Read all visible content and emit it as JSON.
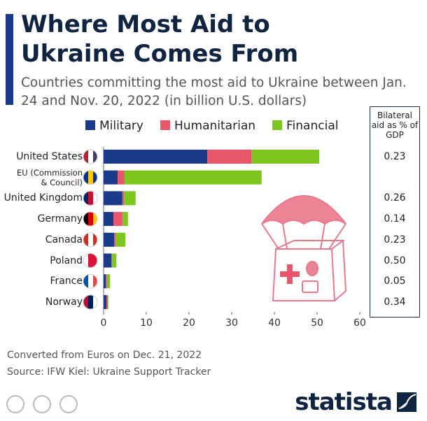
{
  "chart_data": {
    "type": "stacked-bar-horizontal",
    "title": "Where Most Aid to Ukraine Comes From",
    "subtitle": "Countries committing the most aid to Ukraine between Jan. 24 and Nov. 20, 2022 (in billion U.S. dollars)",
    "categories": [
      "United States",
      "EU (Commission & Council)",
      "United Kingdom",
      "Germany",
      "Canada",
      "Poland",
      "France",
      "Norway"
    ],
    "series": [
      {
        "name": "Military",
        "color": "#1c3a8a",
        "values": [
          24.3,
          3.3,
          4.4,
          2.3,
          2.5,
          1.8,
          0.5,
          0.7
        ]
      },
      {
        "name": "Humanitarian",
        "color": "#e8566b",
        "values": [
          10.3,
          1.6,
          0.4,
          2.1,
          0.3,
          0.2,
          0.3,
          0.3
        ]
      },
      {
        "name": "Financial",
        "color": "#7cc61e",
        "values": [
          15.9,
          32.1,
          2.7,
          1.3,
          2.3,
          1.0,
          0.7,
          0.1
        ]
      }
    ],
    "xlim": [
      0,
      60
    ],
    "xticks": [
      0,
      10,
      20,
      30,
      40,
      50,
      60
    ],
    "gdp_share": {
      "title": "Bilateral aid as % of GDP",
      "values": [
        0.23,
        null,
        0.26,
        0.14,
        0.23,
        0.5,
        0.05,
        0.34
      ],
      "value_labels": [
        "0.23",
        null,
        "0.26",
        "0.14",
        "0.23",
        "0.50",
        "0.05",
        "0.34"
      ]
    },
    "notes": [
      "Converted from Euros on Dec. 21, 2022",
      "Source: IFW Kiel: Ukraine Support Tracker"
    ],
    "brand": "statista"
  }
}
